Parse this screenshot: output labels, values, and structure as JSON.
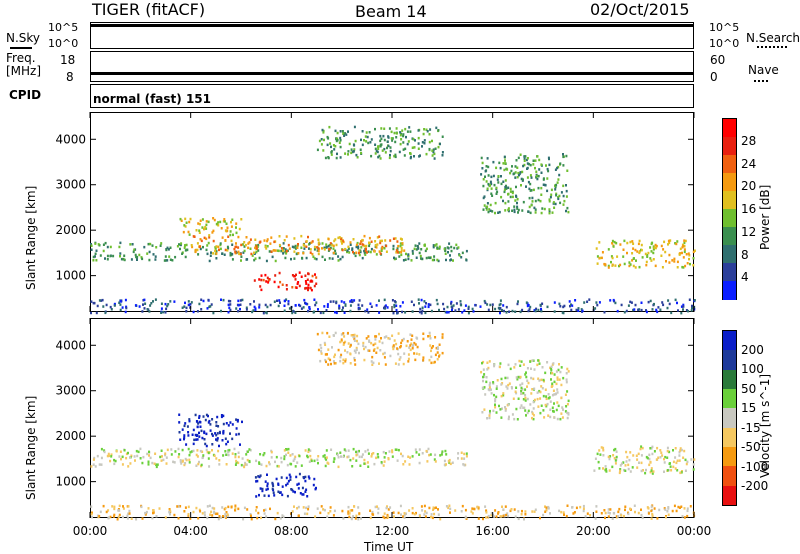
{
  "header": {
    "station": "TIGER (fitACF)",
    "beam": "Beam 14",
    "date": "02/Oct/2015"
  },
  "strips": {
    "nsky_label": "N.Sky",
    "nsearch_label": "N.Search",
    "nsky_ticks": [
      "10^5",
      "10^0"
    ],
    "nsearch_ticks": [
      "10^5",
      "10^0"
    ],
    "freq_label_1": "Freq.",
    "freq_label_2": "[MHz]",
    "freq_ticks": [
      "18",
      "8"
    ],
    "nave_label": "Nave",
    "nave_ticks": [
      "60",
      "0"
    ],
    "cpid_label": "CPID",
    "cpid_value": "normal (fast) 151"
  },
  "colors": {
    "power": [
      "#0a1eff",
      "#2b3f9a",
      "#2f6f6f",
      "#3a8f4f",
      "#6fbf2f",
      "#e0c020",
      "#f59a10",
      "#f06010",
      "#e82010",
      "#ff0000"
    ],
    "velocity": [
      "#e81010",
      "#f05010",
      "#f59a10",
      "#f5c860",
      "#c8c8c0",
      "#6ad03a",
      "#2a7a3a",
      "#1e3a9a",
      "#0a1ec8"
    ]
  },
  "chart_data": [
    {
      "type": "heatmap",
      "name": "power",
      "ylabel": "Slant Range [km]",
      "xlabel": "Time UT",
      "x_ticks": [
        "00:00",
        "04:00",
        "08:00",
        "12:00",
        "16:00",
        "20:00",
        "00:00"
      ],
      "y_ticks": [
        1000,
        2000,
        3000,
        4000
      ],
      "ylim": [
        200,
        4600
      ],
      "xlim_hours": [
        0,
        24
      ],
      "colorbar_label": "Power [dB]",
      "colorbar_ticks": [
        4,
        8,
        12,
        16,
        20,
        24,
        28
      ],
      "colorbar_range": [
        0,
        30
      ],
      "features": [
        {
          "t0": 0.0,
          "t1": 15.0,
          "r0": 1350,
          "r1": 1750,
          "level": 3
        },
        {
          "t0": 4.0,
          "t1": 12.5,
          "r0": 1500,
          "r1": 1900,
          "level": 6
        },
        {
          "t0": 6.5,
          "t1": 9.0,
          "r0": 700,
          "r1": 1100,
          "level": 8
        },
        {
          "t0": 3.5,
          "t1": 6.0,
          "r0": 1900,
          "r1": 2300,
          "level": 5
        },
        {
          "t0": 9.0,
          "t1": 14.0,
          "r0": 3600,
          "r1": 4300,
          "level": 3
        },
        {
          "t0": 15.5,
          "t1": 19.0,
          "r0": 2400,
          "r1": 3700,
          "level": 3
        },
        {
          "t0": 20.0,
          "t1": 24.0,
          "r0": 1200,
          "r1": 1800,
          "level": 5
        },
        {
          "t0": 0.0,
          "t1": 24.0,
          "r0": 200,
          "r1": 500,
          "level": 1
        }
      ]
    },
    {
      "type": "heatmap",
      "name": "velocity",
      "ylabel": "Slant Range [km]",
      "xlabel": "Time UT",
      "x_ticks": [
        "00:00",
        "04:00",
        "08:00",
        "12:00",
        "16:00",
        "20:00",
        "00:00"
      ],
      "y_ticks": [
        1000,
        2000,
        3000,
        4000
      ],
      "ylim": [
        200,
        4600
      ],
      "xlim_hours": [
        0,
        24
      ],
      "colorbar_label": "Velocity [m s^-1]",
      "colorbar_ticks": [
        200,
        100,
        50,
        15,
        -15,
        -50,
        -100,
        -200
      ],
      "features": [
        {
          "t0": 0.0,
          "t1": 15.0,
          "r0": 1350,
          "r1": 1750,
          "level": 4
        },
        {
          "t0": 3.5,
          "t1": 6.0,
          "r0": 1800,
          "r1": 2500,
          "level": 8
        },
        {
          "t0": 6.5,
          "t1": 9.0,
          "r0": 700,
          "r1": 1200,
          "level": 8
        },
        {
          "t0": 9.0,
          "t1": 14.0,
          "r0": 3600,
          "r1": 4300,
          "level": 3
        },
        {
          "t0": 15.5,
          "t1": 19.0,
          "r0": 2400,
          "r1": 3700,
          "level": 4
        },
        {
          "t0": 20.0,
          "t1": 24.0,
          "r0": 1200,
          "r1": 1800,
          "level": 4
        },
        {
          "t0": 0.0,
          "t1": 24.0,
          "r0": 200,
          "r1": 500,
          "level": 3
        }
      ]
    }
  ]
}
